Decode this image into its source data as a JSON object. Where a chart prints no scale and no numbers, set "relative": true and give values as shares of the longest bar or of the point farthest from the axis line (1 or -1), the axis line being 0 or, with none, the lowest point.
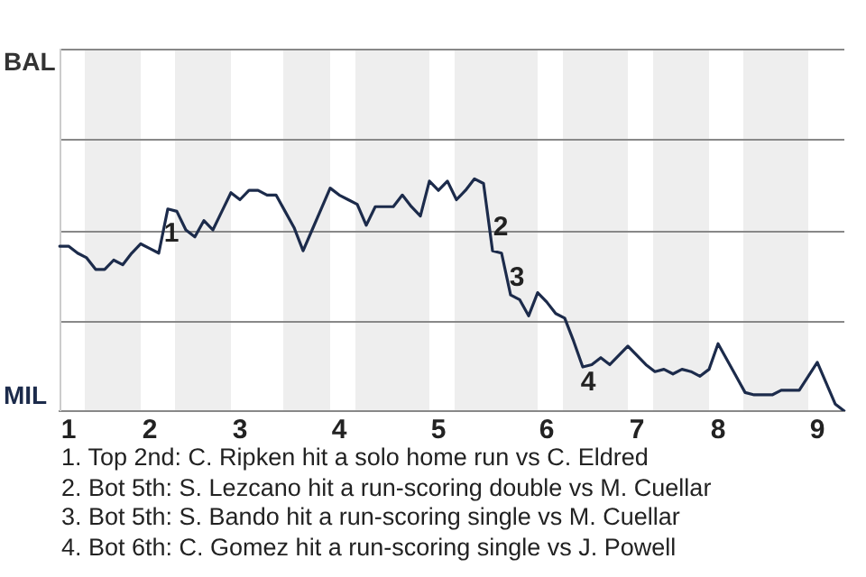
{
  "chart_data": {
    "type": "line",
    "relative": true,
    "marker": "none",
    "line_style": "solid",
    "categories": [
      null,
      "1",
      null,
      null,
      null,
      null,
      null,
      null,
      null,
      null,
      "2",
      null,
      null,
      null,
      null,
      null,
      null,
      null,
      null,
      null,
      "3",
      null,
      null,
      null,
      null,
      null,
      null,
      null,
      null,
      null,
      null,
      "4",
      null,
      null,
      null,
      null,
      null,
      null,
      null,
      null,
      null,
      null,
      "5",
      null,
      null,
      null,
      null,
      null,
      null,
      null,
      null,
      null,
      null,
      null,
      "6",
      null,
      null,
      null,
      null,
      null,
      null,
      null,
      null,
      null,
      "7",
      null,
      null,
      null,
      null,
      null,
      null,
      null,
      null,
      "8",
      null,
      null,
      null,
      null,
      null,
      null,
      null,
      null,
      null,
      null,
      "9",
      null,
      null,
      null
    ],
    "series": [
      {
        "color": "#1c2b4b",
        "values": [
          0.71,
          0.71,
          0.68,
          0.66,
          0.61,
          0.61,
          0.65,
          0.63,
          0.68,
          0.72,
          0.7,
          0.68,
          0.87,
          0.86,
          0.78,
          0.75,
          0.82,
          0.78,
          0.86,
          0.94,
          0.91,
          0.95,
          0.95,
          0.93,
          0.93,
          0.86,
          0.79,
          0.69,
          0.78,
          0.87,
          0.96,
          0.93,
          0.91,
          0.89,
          0.8,
          0.88,
          0.88,
          0.88,
          0.93,
          0.88,
          0.84,
          0.99,
          0.95,
          0.99,
          0.91,
          0.95,
          1,
          0.98,
          0.69,
          0.68,
          0.5,
          0.48,
          0.41,
          0.51,
          0.47,
          0.42,
          0.4,
          0.3,
          0.19,
          0.2,
          0.23,
          0.2,
          0.24,
          0.28,
          0.24,
          0.2,
          0.17,
          0.18,
          0.16,
          0.18,
          0.17,
          0.15,
          0.18,
          0.29,
          0.22,
          0.15,
          0.08,
          0.07,
          0.07,
          0.07,
          0.09,
          0.09,
          0.09,
          0.15,
          0.21,
          0.12,
          0.03,
          0
        ]
      }
    ],
    "ref_lines": [
      {
        "axis": "y",
        "value": 0.39,
        "color": "#888888"
      },
      {
        "axis": "y",
        "value": 0.78,
        "color": "#888888"
      },
      {
        "axis": "y",
        "value": 1.17,
        "color": "#888888"
      },
      {
        "axis": "y",
        "value": 1.56,
        "color": "#888888"
      }
    ],
    "annotations": [
      "BAL",
      "MIL",
      "1",
      "2",
      "3",
      "4",
      "1. Top 2nd: C. Ripken hit a solo home run vs C. Eldred",
      "2. Bot 5th: S. Lezcano hit a run-scoring double vs M. Cuellar",
      "3. Bot 5th: S. Bando hit a run-scoring single vs M. Cuellar",
      "4. Bot 6th: C. Gomez hit a run-scoring single vs J. Powell"
    ]
  }
}
